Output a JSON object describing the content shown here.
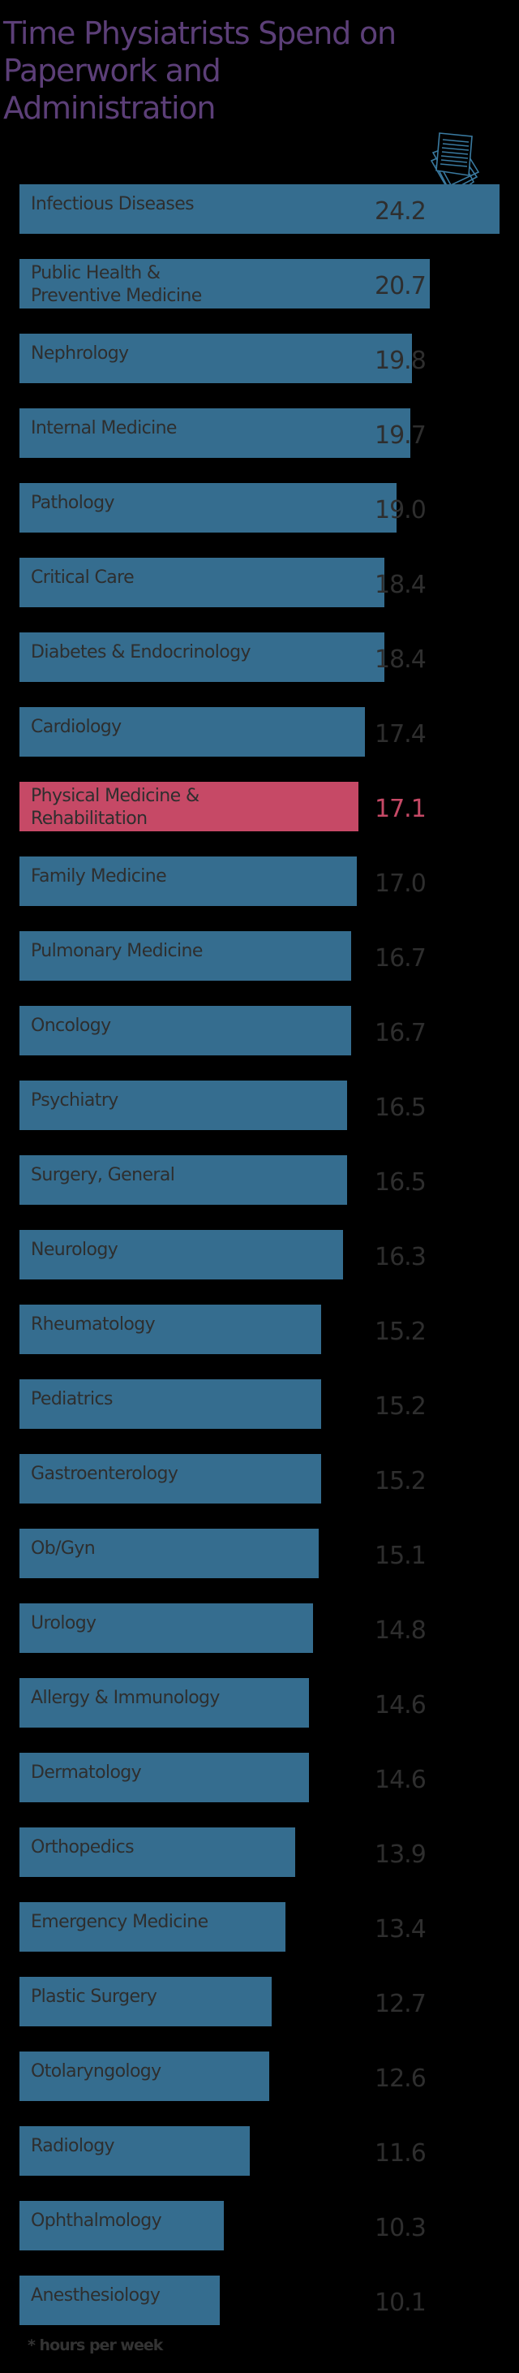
{
  "header": {
    "title": "Time Physiatrists Spend on Paperwork and Administration",
    "icon": "paper-stack-icon"
  },
  "colors": {
    "background": "#000000",
    "title": "#5c3f78",
    "bar": "#356d8f",
    "highlight": "#c64966",
    "text": "#2e2e2e"
  },
  "footnote": "* hours per week",
  "chart_data": {
    "type": "bar",
    "orientation": "horizontal",
    "title": "Time Physiatrists Spend on Paperwork and Administration",
    "xlabel": "",
    "ylabel": "",
    "unit": "hours per week",
    "highlight": "Physical Medicine & Rehabilitation",
    "grid": false,
    "legend": null,
    "categories": [
      "Infectious Diseases",
      "Public Health & Preventive Medicine",
      "Nephrology",
      "Internal Medicine",
      "Pathology",
      "Critical Care",
      "Diabetes & Endocrinology",
      "Cardiology",
      "Physical Medicine & Rehabilitation",
      "Family Medicine",
      "Pulmonary Medicine",
      "Oncology",
      "Psychiatry",
      "Surgery, General",
      "Neurology",
      "Rheumatology",
      "Pediatrics",
      "Gastroenterology",
      "Ob/Gyn",
      "Urology",
      "Allergy & Immunology",
      "Dermatology",
      "Orthopedics",
      "Emergency Medicine",
      "Plastic Surgery",
      "Otolaryngology",
      "Radiology",
      "Ophthalmology",
      "Anesthesiology"
    ],
    "values": [
      24.2,
      20.7,
      19.8,
      19.7,
      19.0,
      18.4,
      18.4,
      17.4,
      17.1,
      17.0,
      16.7,
      16.7,
      16.5,
      16.5,
      16.3,
      15.2,
      15.2,
      15.2,
      15.1,
      14.8,
      14.6,
      14.6,
      13.9,
      13.4,
      12.7,
      12.6,
      11.6,
      10.3,
      10.1
    ],
    "value_labels": [
      "24.2",
      "20.7",
      "19.8",
      "19.7",
      "19.0",
      "18.4",
      "18.4",
      "17.4",
      "17.1",
      "17.0",
      "16.7",
      "16.7",
      "16.5",
      "16.5",
      "16.3",
      "15.2",
      "15.2",
      "15.2",
      "15.1",
      "14.8",
      "14.6",
      "14.6",
      "13.9",
      "13.4",
      "12.7",
      "12.6",
      "11.6",
      "10.3",
      "10.1"
    ],
    "xlim": [
      0,
      24.2
    ],
    "footnote": "* hours per week"
  }
}
